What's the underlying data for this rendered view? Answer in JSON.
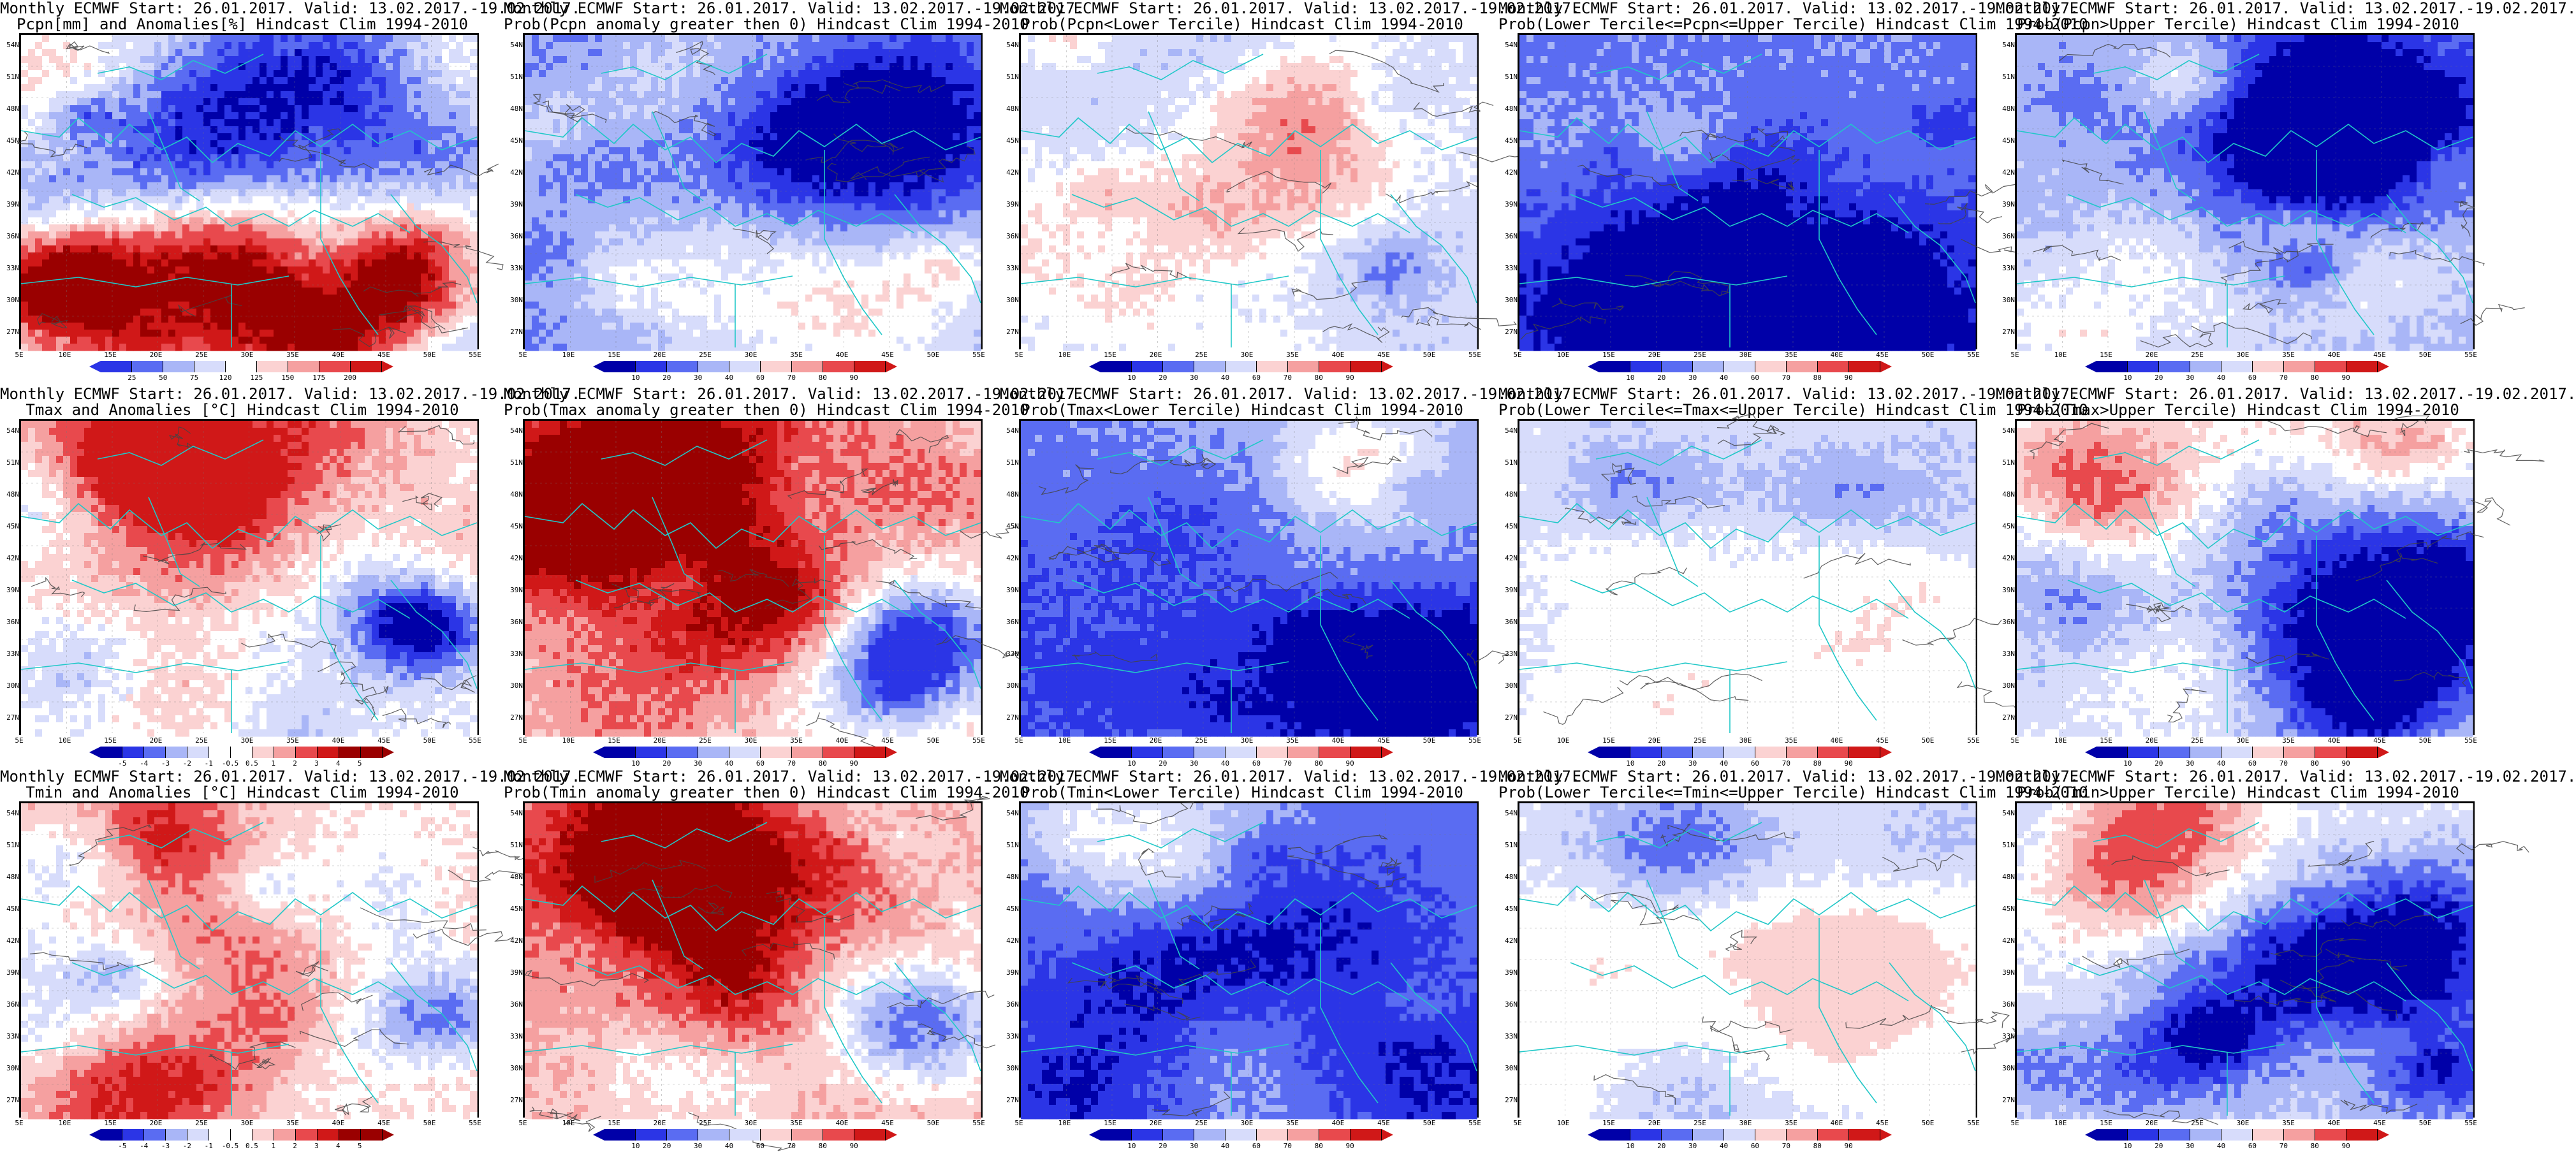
{
  "rows": [
    {
      "panels": [
        {
          "line1": "Monthly ECMWF Start: 26.01.2017. Valid: 13.02.2017.-19.02.2017.",
          "line2": "Pcpn[mm] and Anomalies[%]",
          "line3": "",
          "clim": "Hindcast Clim 1994-2010",
          "scheme": "anom-pcpn",
          "ticks": [
            "25",
            "50",
            "75",
            "120",
            "125",
            "150",
            "175",
            "200"
          ]
        },
        {
          "line1": "Monthly ECMWF Start: 26.01.2017. Valid: 13.02.2017.-19.02.2017.",
          "line2": "Prob(Pcpn anomaly greater then 0)",
          "clim": "Hindcast Clim 1994-2010",
          "scheme": "prob-blue",
          "ticks": [
            "10",
            "20",
            "30",
            "40",
            "60",
            "70",
            "80",
            "90"
          ]
        },
        {
          "line1": "Monthly ECMWF Start: 26.01.2017. Valid: 13.02.2017.-19.02.2017.",
          "line2": "Prob(Pcpn<Lower Tercile)",
          "clim": "Hindcast Clim 1994-2010",
          "scheme": "prob-mixed",
          "ticks": [
            "10",
            "20",
            "30",
            "40",
            "60",
            "70",
            "80",
            "90"
          ]
        },
        {
          "line1": "Monthly ECMWF Start: 26.01.2017. Valid: 13.02.2017.-19.02.2017.",
          "line2": "Prob(Lower Tercile<=Pcpn<=Upper Tercile)",
          "clim": "Hindcast Clim 1994-2010",
          "scheme": "prob-deep",
          "ticks": [
            "10",
            "20",
            "30",
            "40",
            "60",
            "70",
            "80",
            "90"
          ]
        },
        {
          "line1": "Monthly ECMWF Start: 26.01.2017. Valid: 13.02.2017.-19.02.2017.",
          "line2": "Prob(Pcpn>Upper Tercile)",
          "clim": "Hindcast Clim 1994-2010",
          "scheme": "prob-blue",
          "ticks": [
            "10",
            "20",
            "30",
            "40",
            "60",
            "70",
            "80",
            "90"
          ]
        }
      ]
    },
    {
      "panels": [
        {
          "line1": "Monthly ECMWF Start: 26.01.2017. Valid: 13.02.2017.-19.02.2017.",
          "line2": "Tmax and Anomalies [°C]",
          "clim": "Hindcast Clim 1994-2010",
          "scheme": "anom-temp",
          "ticks": [
            "-5",
            "-4",
            "-3",
            "-2",
            "-1",
            "-0.5",
            "0.5",
            "1",
            "2",
            "3",
            "4",
            "5"
          ]
        },
        {
          "line1": "Monthly ECMWF Start: 26.01.2017. Valid: 13.02.2017.-19.02.2017.",
          "line2": "Prob(Tmax anomaly greater then 0)",
          "clim": "Hindcast Clim 1994-2010",
          "scheme": "prob-red",
          "ticks": [
            "10",
            "20",
            "30",
            "40",
            "60",
            "70",
            "80",
            "90"
          ]
        },
        {
          "line1": "Monthly ECMWF Start: 26.01.2017. Valid: 13.02.2017.-19.02.2017.",
          "line2": "Prob(Tmax<Lower Tercile)",
          "clim": "Hindcast Clim 1994-2010",
          "scheme": "prob-deep",
          "ticks": [
            "10",
            "20",
            "30",
            "40",
            "60",
            "70",
            "80",
            "90"
          ]
        },
        {
          "line1": "Monthly ECMWF Start: 26.01.2017. Valid: 13.02.2017.-19.02.2017.",
          "line2": "Prob(Lower Tercile<=Tmax<=Upper Tercile)",
          "clim": "Hindcast Clim 1994-2010",
          "scheme": "prob-light",
          "ticks": [
            "10",
            "20",
            "30",
            "40",
            "60",
            "70",
            "80",
            "90"
          ]
        },
        {
          "line1": "Monthly ECMWF Start: 26.01.2017. Valid: 13.02.2017.-19.02.2017.",
          "line2": "Prob(Tmax>Upper Tercile)",
          "clim": "Hindcast Clim 1994-2010",
          "scheme": "prob-mixed2",
          "ticks": [
            "10",
            "20",
            "30",
            "40",
            "60",
            "70",
            "80",
            "90"
          ]
        }
      ]
    },
    {
      "panels": [
        {
          "line1": "Monthly ECMWF Start: 26.01.2017. Valid: 13.02.2017.-19.02.2017.",
          "line2": "Tmin and Anomalies [°C]",
          "clim": "Hindcast Clim 1994-2010",
          "scheme": "anom-temp2",
          "ticks": [
            "-5",
            "-4",
            "-3",
            "-2",
            "-1",
            "-0.5",
            "0.5",
            "1",
            "2",
            "3",
            "4",
            "5"
          ]
        },
        {
          "line1": "Monthly ECMWF Start: 26.01.2017. Valid: 13.02.2017.-19.02.2017.",
          "line2": "Prob(Tmin anomaly greater then 0)",
          "clim": "Hindcast Clim 1994-2010",
          "scheme": "prob-red",
          "ticks": [
            "10",
            "20",
            "30",
            "40",
            "60",
            "70",
            "80",
            "90"
          ]
        },
        {
          "line1": "Monthly ECMWF Start: 26.01.2017. Valid: 13.02.2017.-19.02.2017.",
          "line2": "Prob(Tmin<Lower Tercile)",
          "clim": "Hindcast Clim 1994-2010",
          "scheme": "prob-deep",
          "ticks": [
            "10",
            "20",
            "30",
            "40",
            "60",
            "70",
            "80",
            "90"
          ]
        },
        {
          "line1": "Monthly ECMWF Start: 26.01.2017. Valid: 13.02.2017.-19.02.2017.",
          "line2": "Prob(Lower Tercile<=Tmin<=Upper Tercile)",
          "clim": "Hindcast Clim 1994-2010",
          "scheme": "prob-light",
          "ticks": [
            "10",
            "20",
            "30",
            "40",
            "60",
            "70",
            "80",
            "90"
          ]
        },
        {
          "line1": "Monthly ECMWF Start: 26.01.2017. Valid: 13.02.2017.-19.02.2017.",
          "line2": "Prob(Tmin>Upper Tercile)",
          "clim": "Hindcast Clim 1994-2010",
          "scheme": "prob-mixed2",
          "ticks": [
            "10",
            "20",
            "30",
            "40",
            "60",
            "70",
            "80",
            "90"
          ]
        }
      ]
    }
  ],
  "lat_labels": [
    "54N",
    "51N",
    "48N",
    "45N",
    "42N",
    "39N",
    "36N",
    "33N",
    "30N",
    "27N"
  ],
  "lon_labels": [
    "5E",
    "10E",
    "15E",
    "20E",
    "25E",
    "30E",
    "35E",
    "40E",
    "45E",
    "50E",
    "55E"
  ],
  "colors": {
    "deep_blue": "#0000a8",
    "blue": "#2b35e6",
    "mid_blue": "#5a6cf2",
    "light_blue": "#a9b6f7",
    "pale_blue": "#d7dcfb",
    "white": "#ffffff",
    "pale_red": "#fbd2d2",
    "light_red": "#f5a0a0",
    "red": "#e8494d",
    "mid_red": "#d01818",
    "dark_red": "#9a0000",
    "coast": "#20c8c8",
    "contour": "#444444"
  }
}
